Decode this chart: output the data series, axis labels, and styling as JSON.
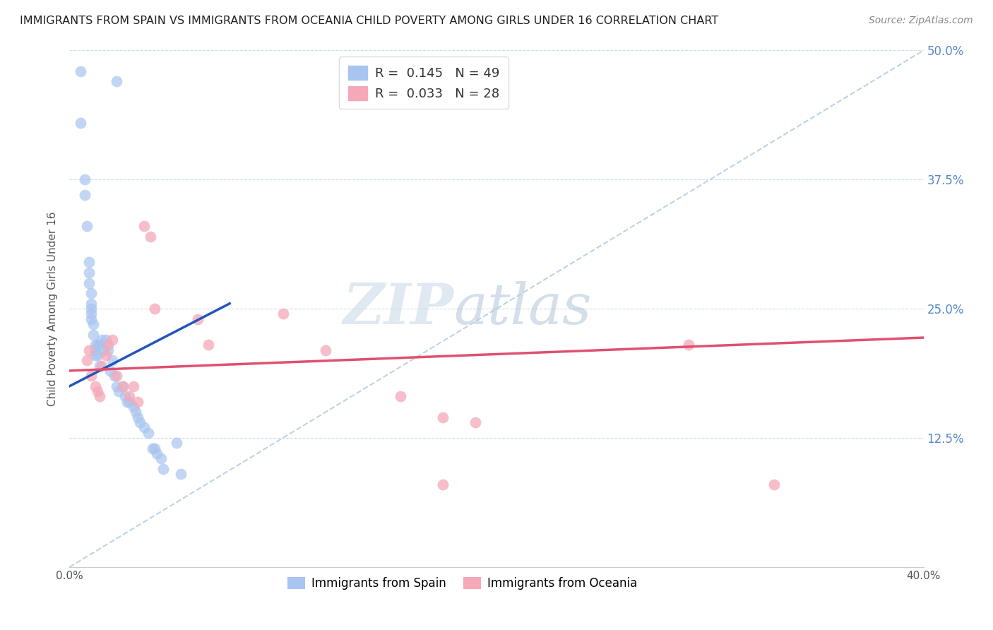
{
  "title": "IMMIGRANTS FROM SPAIN VS IMMIGRANTS FROM OCEANIA CHILD POVERTY AMONG GIRLS UNDER 16 CORRELATION CHART",
  "source": "Source: ZipAtlas.com",
  "ylabel": "Child Poverty Among Girls Under 16",
  "xlim": [
    0.0,
    0.4
  ],
  "ylim": [
    0.0,
    0.5
  ],
  "yticks": [
    0.0,
    0.125,
    0.25,
    0.375,
    0.5
  ],
  "yticklabels": [
    "",
    "12.5%",
    "25.0%",
    "37.5%",
    "50.0%"
  ],
  "watermark_zip": "ZIP",
  "watermark_atlas": "atlas",
  "spain_color": "#a8c4f0",
  "oceania_color": "#f5a8b8",
  "spain_line_color": "#2255bb",
  "oceania_line_color": "#e05070",
  "dashed_line_color": "#b8cfe0",
  "spain_scatter_x": [
    0.005,
    0.022,
    0.005,
    0.007,
    0.007,
    0.008,
    0.009,
    0.009,
    0.009,
    0.01,
    0.01,
    0.01,
    0.01,
    0.01,
    0.011,
    0.011,
    0.012,
    0.012,
    0.012,
    0.013,
    0.013,
    0.014,
    0.014,
    0.015,
    0.016,
    0.017,
    0.018,
    0.019,
    0.02,
    0.021,
    0.022,
    0.023,
    0.025,
    0.026,
    0.027,
    0.028,
    0.03,
    0.031,
    0.032,
    0.033,
    0.035,
    0.037,
    0.039,
    0.04,
    0.041,
    0.043,
    0.044,
    0.05,
    0.052
  ],
  "spain_scatter_y": [
    0.48,
    0.47,
    0.43,
    0.375,
    0.36,
    0.33,
    0.295,
    0.285,
    0.275,
    0.265,
    0.255,
    0.25,
    0.245,
    0.24,
    0.235,
    0.225,
    0.215,
    0.21,
    0.205,
    0.215,
    0.205,
    0.195,
    0.215,
    0.22,
    0.21,
    0.22,
    0.21,
    0.19,
    0.2,
    0.185,
    0.175,
    0.17,
    0.175,
    0.165,
    0.16,
    0.16,
    0.155,
    0.15,
    0.145,
    0.14,
    0.135,
    0.13,
    0.115,
    0.115,
    0.11,
    0.105,
    0.095,
    0.12,
    0.09
  ],
  "oceania_scatter_x": [
    0.008,
    0.009,
    0.01,
    0.012,
    0.013,
    0.014,
    0.015,
    0.017,
    0.018,
    0.02,
    0.022,
    0.025,
    0.028,
    0.03,
    0.032,
    0.035,
    0.038,
    0.04,
    0.06,
    0.065,
    0.1,
    0.12,
    0.155,
    0.175,
    0.175,
    0.19,
    0.33,
    0.29
  ],
  "oceania_scatter_y": [
    0.2,
    0.21,
    0.185,
    0.175,
    0.17,
    0.165,
    0.195,
    0.205,
    0.215,
    0.22,
    0.185,
    0.175,
    0.165,
    0.175,
    0.16,
    0.33,
    0.32,
    0.25,
    0.24,
    0.215,
    0.245,
    0.21,
    0.165,
    0.145,
    0.08,
    0.14,
    0.08,
    0.215
  ]
}
